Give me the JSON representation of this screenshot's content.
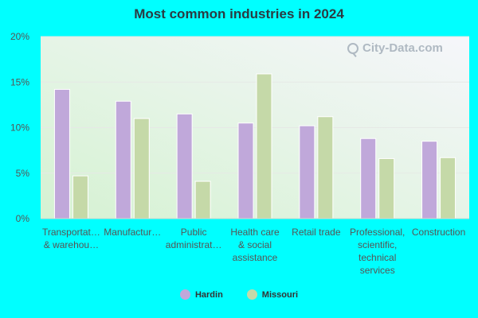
{
  "title": "Most common industries in 2024",
  "watermark": "City-Data.com",
  "colors": {
    "background": "#00ffff",
    "hardin": "#c0a8da",
    "missouri": "#c5d9a8"
  },
  "legend": {
    "hardin": "Hardin",
    "missouri": "Missouri"
  },
  "chart_data": {
    "type": "bar",
    "title": "Most common industries in 2024",
    "categories": [
      [
        "Transportat…",
        "& warehou…"
      ],
      [
        "Manufactur…"
      ],
      [
        "Public",
        "administrat…"
      ],
      [
        "Health care",
        "& social",
        "assistance"
      ],
      [
        "Retail trade"
      ],
      [
        "Professional,",
        "scientific,",
        "technical",
        "services"
      ],
      [
        "Construction"
      ]
    ],
    "series": [
      {
        "name": "Hardin",
        "color": "#c0a8da",
        "values": [
          14.2,
          12.9,
          11.5,
          10.5,
          10.2,
          8.8,
          8.5
        ]
      },
      {
        "name": "Missouri",
        "color": "#c5d9a8",
        "values": [
          4.7,
          11.0,
          4.1,
          15.9,
          11.2,
          6.6,
          6.7
        ]
      }
    ],
    "yticks": [
      "0%",
      "5%",
      "10%",
      "15%",
      "20%"
    ],
    "ylim": [
      0,
      20
    ],
    "grid": true,
    "legend_position": "bottom"
  }
}
